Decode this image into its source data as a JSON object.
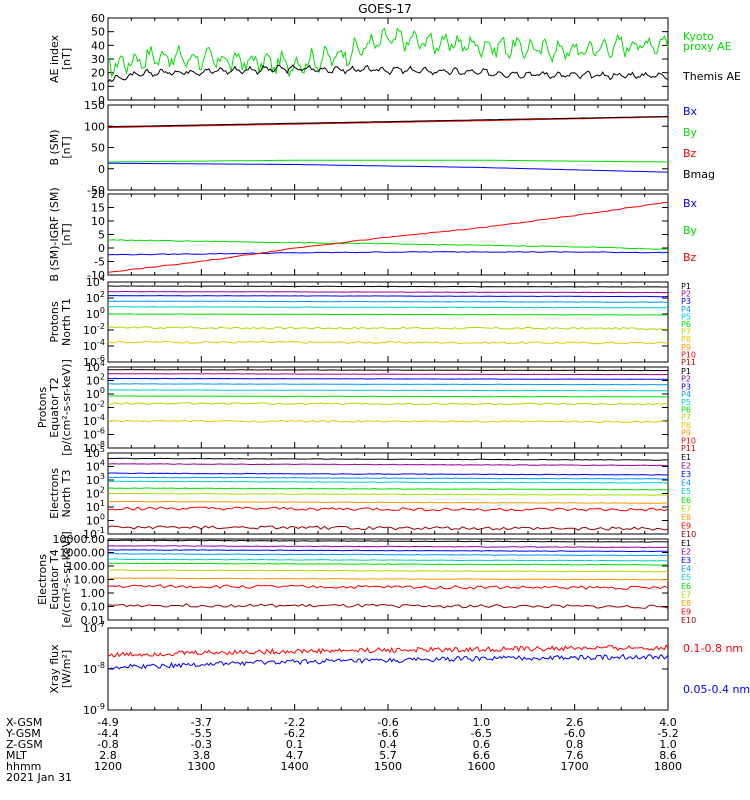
{
  "title": "GOES-17",
  "colors": {
    "black": "#000000",
    "red": "#ff0000",
    "green": "#00dd00",
    "blue": "#0000ff",
    "darkred": "#990000",
    "gold": "#e6c800"
  },
  "panels": [
    {
      "id": "ae",
      "ylabel": [
        "AE index",
        "[nT]"
      ],
      "scale": "linear",
      "ylim": [
        0,
        60
      ],
      "ticks": [
        "0",
        "10",
        "20",
        "30",
        "40",
        "50",
        "60"
      ],
      "legend": [
        {
          "text": "Kyoto",
          "color": "#00dd00"
        },
        {
          "text": "proxy AE",
          "color": "#00dd00"
        },
        {
          "text": "Themis AE",
          "color": "#000000"
        }
      ]
    },
    {
      "id": "b_sm",
      "ylabel": [
        "B (SM)",
        "[nT]"
      ],
      "scale": "linear",
      "ylim": [
        -50,
        150
      ],
      "ticks": [
        "-50",
        "0",
        "50",
        "100",
        "150"
      ],
      "legend": [
        {
          "text": "Bx",
          "color": "#0000ff"
        },
        {
          "text": "By",
          "color": "#00dd00"
        },
        {
          "text": "Bz",
          "color": "#ff0000"
        },
        {
          "text": "Bmag",
          "color": "#000000"
        }
      ]
    },
    {
      "id": "b_igrf",
      "ylabel": [
        "B (SM)-IGRF (SM)",
        "[nT]"
      ],
      "scale": "linear",
      "ylim": [
        -10,
        20
      ],
      "ticks": [
        "-10",
        "-5",
        "0",
        "5",
        "10",
        "15",
        "20"
      ],
      "legend": [
        {
          "text": "Bx",
          "color": "#0000ff"
        },
        {
          "text": "By",
          "color": "#00dd00"
        },
        {
          "text": "Bz",
          "color": "#ff0000"
        }
      ]
    },
    {
      "id": "p_t1",
      "ylabel": [
        "Protons",
        "North T1"
      ],
      "scale": "log",
      "ylim": [
        -6,
        4
      ],
      "ticks": [
        "10^-6",
        "10^-4",
        "10^-2",
        "10^0",
        "10^2",
        "10^4"
      ],
      "legend": [
        {
          "text": "P1",
          "color": "#000000"
        },
        {
          "text": "P2",
          "color": "#990099"
        },
        {
          "text": "P3",
          "color": "#0000ff"
        },
        {
          "text": "P4",
          "color": "#0099ff"
        },
        {
          "text": "P5",
          "color": "#00cccc"
        },
        {
          "text": "P6",
          "color": "#00dd00"
        },
        {
          "text": "P7",
          "color": "#aadd00"
        },
        {
          "text": "P8",
          "color": "#e6c800"
        },
        {
          "text": "P9",
          "color": "#ff9900"
        },
        {
          "text": "P10",
          "color": "#ff0000"
        },
        {
          "text": "P11",
          "color": "#cc0000"
        }
      ]
    },
    {
      "id": "p_t2",
      "ylabel": [
        "Protons",
        "Equator T2",
        "[p/(cm²-s-sr-keV)]"
      ],
      "scale": "log",
      "ylim": [
        -8,
        4
      ],
      "ticks": [
        "10^-8",
        "10^-6",
        "10^-4",
        "10^-2",
        "10^0",
        "10^2",
        "10^4"
      ],
      "legend": [
        {
          "text": "P1",
          "color": "#000000"
        },
        {
          "text": "P2",
          "color": "#990099"
        },
        {
          "text": "P3",
          "color": "#0000ff"
        },
        {
          "text": "P4",
          "color": "#0099ff"
        },
        {
          "text": "P5",
          "color": "#00cccc"
        },
        {
          "text": "P6",
          "color": "#00dd00"
        },
        {
          "text": "P7",
          "color": "#aadd00"
        },
        {
          "text": "P8",
          "color": "#e6c800"
        },
        {
          "text": "P9",
          "color": "#ff9900"
        },
        {
          "text": "P10",
          "color": "#ff0000"
        },
        {
          "text": "P11",
          "color": "#cc0000"
        }
      ]
    },
    {
      "id": "e_t3",
      "ylabel": [
        "Electrons",
        "North T3"
      ],
      "scale": "log",
      "ylim": [
        -1,
        5
      ],
      "ticks": [
        "10^-1",
        "10^0",
        "10^1",
        "10^2",
        "10^3",
        "10^4",
        "10^5"
      ],
      "legend": [
        {
          "text": "E1",
          "color": "#000000"
        },
        {
          "text": "E2",
          "color": "#990099"
        },
        {
          "text": "E3",
          "color": "#0000ff"
        },
        {
          "text": "E4",
          "color": "#0099ff"
        },
        {
          "text": "E5",
          "color": "#00cccc"
        },
        {
          "text": "E6",
          "color": "#00dd00"
        },
        {
          "text": "E7",
          "color": "#aadd00"
        },
        {
          "text": "E8",
          "color": "#ff9900"
        },
        {
          "text": "E9",
          "color": "#ff0000"
        },
        {
          "text": "E10",
          "color": "#990000"
        }
      ]
    },
    {
      "id": "e_t4",
      "ylabel": [
        "Electrons",
        "Equator T4",
        "[e/(cm²-s-sr-keV)]"
      ],
      "scale": "log",
      "ylim": [
        -2,
        4
      ],
      "ticks": [
        "0.01",
        "0.10",
        "1.00",
        "10.00",
        "100.00",
        "1000.00",
        "10000.00"
      ],
      "legend": [
        {
          "text": "E1",
          "color": "#000000"
        },
        {
          "text": "E2",
          "color": "#990099"
        },
        {
          "text": "E3",
          "color": "#0000ff"
        },
        {
          "text": "E4",
          "color": "#0099ff"
        },
        {
          "text": "E5",
          "color": "#00cccc"
        },
        {
          "text": "E6",
          "color": "#00dd00"
        },
        {
          "text": "E7",
          "color": "#aadd00"
        },
        {
          "text": "E8",
          "color": "#ff9900"
        },
        {
          "text": "E9",
          "color": "#ff0000"
        },
        {
          "text": "E10",
          "color": "#990000"
        }
      ]
    },
    {
      "id": "xray",
      "ylabel": [
        "Xray flux",
        "[W/m²]"
      ],
      "scale": "log",
      "ylim": [
        -9,
        -7
      ],
      "ticks": [
        "10^-9",
        "10^-8",
        "10^-7"
      ],
      "legend": [
        {
          "text": "0.1-0.8 nm",
          "color": "#ff0000"
        },
        {
          "text": "0.05-0.4 nm",
          "color": "#0000ff"
        }
      ]
    }
  ],
  "footer": {
    "row_labels": [
      "X-GSM",
      "Y-GSM",
      "Z-GSM",
      "MLT",
      "hhmm",
      "2021 Jan 31"
    ],
    "columns": [
      {
        "x_gsm": "-4.9",
        "y_gsm": "-4.4",
        "z_gsm": "-0.8",
        "mlt": "2.8",
        "hhmm": "1200"
      },
      {
        "x_gsm": "-3.7",
        "y_gsm": "-5.5",
        "z_gsm": "-0.3",
        "mlt": "3.8",
        "hhmm": "1300"
      },
      {
        "x_gsm": "-2.2",
        "y_gsm": "-6.2",
        "z_gsm": "0.1",
        "mlt": "4.7",
        "hhmm": "1400"
      },
      {
        "x_gsm": "-0.6",
        "y_gsm": "-6.6",
        "z_gsm": "0.4",
        "mlt": "5.7",
        "hhmm": "1500"
      },
      {
        "x_gsm": "1.0",
        "y_gsm": "-6.5",
        "z_gsm": "0.6",
        "mlt": "6.6",
        "hhmm": "1600"
      },
      {
        "x_gsm": "2.6",
        "y_gsm": "-6.0",
        "z_gsm": "0.8",
        "mlt": "7.6",
        "hhmm": "1700"
      },
      {
        "x_gsm": "4.0",
        "y_gsm": "-5.2",
        "z_gsm": "1.0",
        "mlt": "8.6",
        "hhmm": "1800"
      }
    ]
  },
  "chart_data": [
    {
      "type": "line",
      "ylabel": "AE index [nT]",
      "xlim": [
        12,
        18
      ],
      "ylim": [
        0,
        60
      ],
      "series": [
        {
          "name": "Kyoto proxy AE",
          "color": "#00dd00",
          "x": [
            12,
            12.5,
            13,
            13.5,
            14,
            14.5,
            15,
            15.5,
            16,
            16.5,
            17,
            17.5,
            18
          ],
          "values": [
            25,
            32,
            30,
            28,
            26,
            33,
            45,
            42,
            40,
            38,
            36,
            40,
            42
          ]
        },
        {
          "name": "Themis AE",
          "color": "#000000",
          "x": [
            12,
            12.5,
            13,
            13.5,
            14,
            14.5,
            15,
            15.5,
            16,
            16.5,
            17,
            17.5,
            18
          ],
          "values": [
            15,
            20,
            21,
            22,
            23,
            22,
            22,
            21,
            20,
            19,
            18,
            18,
            18
          ]
        }
      ]
    },
    {
      "type": "line",
      "ylabel": "B (SM) [nT]",
      "xlim": [
        12,
        18
      ],
      "ylim": [
        -50,
        150
      ],
      "series": [
        {
          "name": "Bx",
          "color": "#0000ff",
          "x": [
            12,
            14,
            16,
            18
          ],
          "values": [
            13,
            10,
            3,
            -8
          ]
        },
        {
          "name": "By",
          "color": "#00dd00",
          "x": [
            12,
            14,
            16,
            18
          ],
          "values": [
            16,
            20,
            20,
            16
          ]
        },
        {
          "name": "Bz",
          "color": "#ff0000",
          "x": [
            12,
            14,
            16,
            18
          ],
          "values": [
            97,
            105,
            113,
            122
          ]
        },
        {
          "name": "Bmag",
          "color": "#000000",
          "x": [
            12,
            14,
            16,
            18
          ],
          "values": [
            99,
            107,
            115,
            123
          ]
        }
      ]
    },
    {
      "type": "line",
      "ylabel": "B (SM)-IGRF (SM) [nT]",
      "xlim": [
        12,
        18
      ],
      "ylim": [
        -10,
        20
      ],
      "series": [
        {
          "name": "Bx",
          "color": "#0000ff",
          "x": [
            12,
            13,
            14,
            15,
            16,
            17,
            18
          ],
          "values": [
            -2.5,
            -2.2,
            -1.8,
            -1.5,
            -1.4,
            -1.5,
            -1.7
          ]
        },
        {
          "name": "By",
          "color": "#00dd00",
          "x": [
            12,
            13,
            14,
            15,
            16,
            17,
            18
          ],
          "values": [
            3,
            2.5,
            2,
            1.5,
            1,
            0.5,
            -0.5
          ]
        },
        {
          "name": "Bz",
          "color": "#ff0000",
          "x": [
            12,
            13,
            14,
            15,
            16,
            17,
            18
          ],
          "values": [
            -9,
            -5,
            0,
            4,
            7.5,
            12,
            17
          ]
        }
      ]
    },
    {
      "type": "line",
      "ylabel": "Protons North T1 (log10)",
      "xlim": [
        12,
        18
      ],
      "ylim": [
        -6,
        4
      ],
      "series": [
        {
          "name": "P1",
          "values_log10": 3.5
        },
        {
          "name": "P2",
          "values_log10": 2.8
        },
        {
          "name": "P3",
          "values_log10": 2.3
        },
        {
          "name": "P4",
          "values_log10": 1.6
        },
        {
          "name": "P5",
          "values_log10": 0.9
        },
        {
          "name": "P6",
          "values_log10": 0.0
        },
        {
          "name": "P7",
          "values_log10": -1.7
        },
        {
          "name": "P8",
          "values_log10": -3.5
        }
      ]
    },
    {
      "type": "line",
      "ylabel": "Protons Equator T2 (log10)",
      "xlim": [
        12,
        18
      ],
      "ylim": [
        -8,
        4
      ],
      "series": [
        {
          "name": "P1",
          "values_log10": 3.6
        },
        {
          "name": "P2",
          "values_log10": 3.0
        },
        {
          "name": "P3",
          "values_log10": 2.3
        },
        {
          "name": "P4",
          "values_log10": 1.5
        },
        {
          "name": "P5",
          "values_log10": 0.6
        },
        {
          "name": "P6",
          "values_log10": -0.3
        },
        {
          "name": "P7",
          "values_log10": -1.4
        },
        {
          "name": "P8",
          "values_log10": -4.0
        }
      ]
    },
    {
      "type": "line",
      "ylabel": "Electrons North T3 (log10)",
      "xlim": [
        12,
        18
      ],
      "ylim": [
        -1,
        5
      ],
      "series": [
        {
          "name": "E1",
          "values_log10": 4.6
        },
        {
          "name": "E2",
          "values_log10": 4.2
        },
        {
          "name": "E3",
          "values_log10": 3.5
        },
        {
          "name": "E4",
          "values_log10": 3.2
        },
        {
          "name": "E5",
          "values_log10": 2.9
        },
        {
          "name": "E6",
          "values_log10": 2.4
        },
        {
          "name": "E7",
          "values_log10": 2.0
        },
        {
          "name": "E8",
          "values_log10": 1.4
        },
        {
          "name": "E9",
          "values_log10": 0.9
        },
        {
          "name": "E10",
          "values_log10": -0.5
        }
      ]
    },
    {
      "type": "line",
      "ylabel": "Electrons Equator T4 (log10)",
      "xlim": [
        12,
        18
      ],
      "ylim": [
        -2,
        4
      ],
      "series": [
        {
          "name": "E1",
          "values_log10": 3.9
        },
        {
          "name": "E2",
          "values_log10": 3.5
        },
        {
          "name": "E3",
          "values_log10": 3.2
        },
        {
          "name": "E4",
          "values_log10": 2.9
        },
        {
          "name": "E5",
          "values_log10": 2.5
        },
        {
          "name": "E6",
          "values_log10": 2.2
        },
        {
          "name": "E7",
          "values_log10": 1.7
        },
        {
          "name": "E8",
          "values_log10": 1.1
        },
        {
          "name": "E9",
          "values_log10": 0.5
        },
        {
          "name": "E10",
          "values_log10": -0.9
        }
      ]
    },
    {
      "type": "line",
      "ylabel": "Xray flux [W/m²]",
      "xlim": [
        12,
        18
      ],
      "ylim_log10": [
        -9,
        -7
      ],
      "series": [
        {
          "name": "0.1-0.8 nm",
          "color": "#ff0000",
          "x": [
            12,
            13,
            14,
            15,
            16,
            17,
            18
          ],
          "values": [
            2.2e-08,
            2.5e-08,
            2.7e-08,
            2.9e-08,
            3e-08,
            3.2e-08,
            3.3e-08
          ]
        },
        {
          "name": "0.05-0.4 nm",
          "color": "#0000ff",
          "x": [
            12,
            13,
            14,
            15,
            16,
            17,
            18
          ],
          "values": [
            1.1e-08,
            1.3e-08,
            1.5e-08,
            1.6e-08,
            1.8e-08,
            1.9e-08,
            2e-08
          ]
        }
      ]
    }
  ]
}
